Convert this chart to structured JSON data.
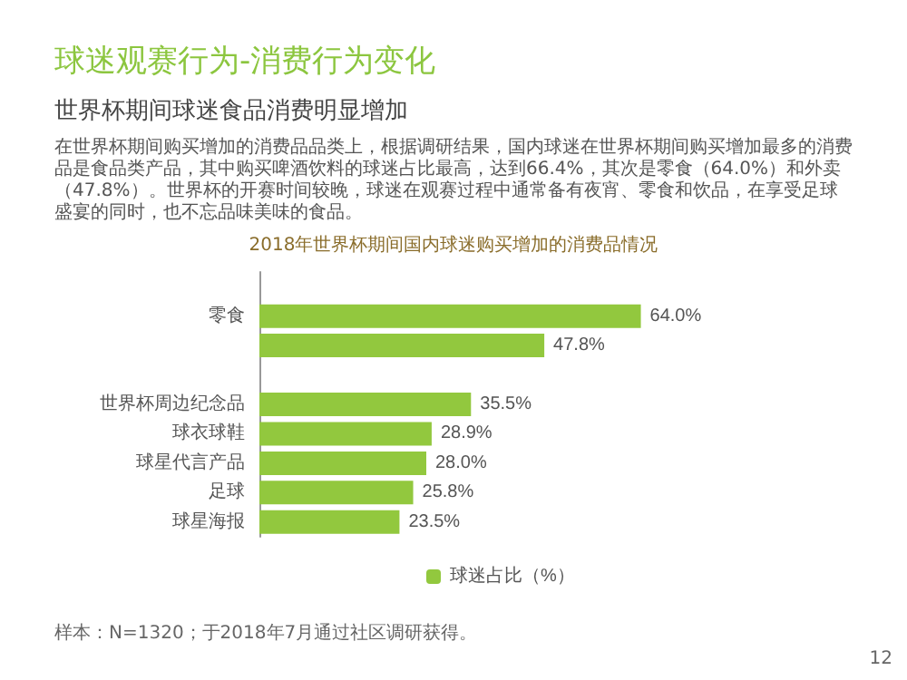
{
  "chart_data": {
    "type": "bar",
    "orientation": "horizontal",
    "title": "球迷观赛行为-消费行为变化",
    "subtitle": "世界杯期间球迷食品消费明显增加",
    "categories": [
      null,
      "零食",
      null,
      null,
      "世界杯周边纪念品",
      "球衣球鞋",
      "球星代言产品",
      "足球",
      "球星海报"
    ],
    "series": [
      {
        "name": "球迷占比（%）",
        "color": "#92c83e",
        "values": [
          null,
          64.0,
          47.8,
          null,
          35.5,
          28.9,
          28.0,
          25.8,
          23.5
        ],
        "value_labels": [
          null,
          "64.0%",
          "47.8%",
          null,
          "35.5%",
          "28.9%",
          "28.0%",
          "25.8%",
          "23.5%"
        ]
      }
    ],
    "legend": "bottom",
    "annotations": [
      "在世界杯期间购买增加的消费品品类上，根据调研结果，国内球迷在世界杯期间购买增加最多的消费品是食品类产品，其中购买啤酒饮料的球迷占比最高，达到66.4%，其次是零食（64.0%）和外卖（47.8%）。世界杯的开赛时间较晚，球迷在观赛过程中通常备有夜宵、零食和饮品，在享受足球盛宴的同时，也不忘品味美味的食品。",
      "2018年世界杯期间国内球迷购买增加的消费品情况",
      "样本：N=1320；于2018年7月通过社区调研获得。",
      "12"
    ]
  }
}
